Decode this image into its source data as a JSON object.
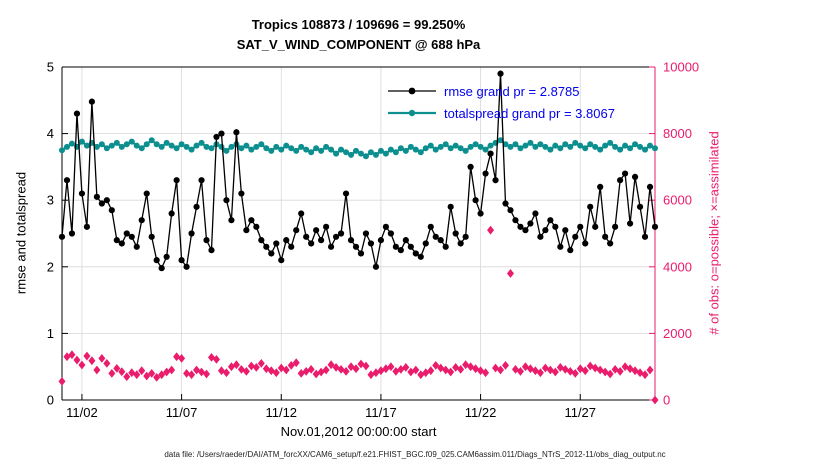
{
  "figure": {
    "title_line1": "Tropics 108873 / 109696 = 99.250%",
    "title_line2": "SAT_V_WIND_COMPONENT @ 688 hPa",
    "xlabel": "Nov.01,2012 00:00:00 start",
    "ylabel_left": "rmse and totalspread",
    "ylabel_right": "# of obs: o=possible; ×=assimilated",
    "caption": "data file: /Users/raeder/DAI/ATM_forcXX/CAM6_setup/f.e21.FHIST_BGC.f09_025.CAM6assim.011/Diags_NTrS_2012-11/obs_diag_output.nc",
    "colors": {
      "rmse": "#000000",
      "totalspread": "#0d8f8f",
      "obs": "#ea1c6c",
      "legend_text": "#0000ee",
      "grid": "#d8d8d8"
    }
  },
  "legend": {
    "items": [
      {
        "label": "rmse grand pr = 2.8785",
        "color": "#000000"
      },
      {
        "label": "totalspread grand pr = 3.8067",
        "color": "#0d8f8f"
      }
    ]
  },
  "chart_data": {
    "type": "line",
    "title": "Tropics 108873 / 109696 = 99.250% — SAT_V_WIND_COMPONENT @ 688 hPa",
    "xlabel": "Nov.01,2012 00:00:00 start",
    "ylabel_left": "rmse and totalspread",
    "ylabel_right": "# of obs: o=possible; ×=assimilated",
    "n_points": 120,
    "x_start": "2012-11-01 00:00",
    "x_step_hours": 6,
    "x_ticks": [
      {
        "index": 4,
        "label": "11/02"
      },
      {
        "index": 24,
        "label": "11/07"
      },
      {
        "index": 44,
        "label": "11/12"
      },
      {
        "index": 64,
        "label": "11/17"
      },
      {
        "index": 84,
        "label": "11/22"
      },
      {
        "index": 104,
        "label": "11/27"
      }
    ],
    "y_left": {
      "min": 0,
      "max": 5,
      "ticks": [
        0,
        1,
        2,
        3,
        4,
        5
      ]
    },
    "y_right": {
      "min": 0,
      "max": 10000,
      "ticks": [
        0,
        2000,
        4000,
        6000,
        8000,
        10000
      ]
    },
    "grid": true,
    "legend_position": "top-right-inside",
    "series": [
      {
        "name": "rmse",
        "axis": "left",
        "grand_mean": 2.8785,
        "marker": "circle",
        "values": [
          2.45,
          3.3,
          2.5,
          4.3,
          3.1,
          2.6,
          4.48,
          3.05,
          2.95,
          3.0,
          2.85,
          2.4,
          2.35,
          2.5,
          2.45,
          2.3,
          2.7,
          3.1,
          2.45,
          2.1,
          1.98,
          2.15,
          2.8,
          3.3,
          2.1,
          2.0,
          2.5,
          2.9,
          3.3,
          2.4,
          2.25,
          3.95,
          4.0,
          3.0,
          2.7,
          4.02,
          3.1,
          2.55,
          2.7,
          2.6,
          2.4,
          2.3,
          2.2,
          2.35,
          2.1,
          2.4,
          2.3,
          2.55,
          2.8,
          2.45,
          2.35,
          2.55,
          2.4,
          2.6,
          2.3,
          2.45,
          2.5,
          3.1,
          2.4,
          2.3,
          2.2,
          2.5,
          2.35,
          2.0,
          2.4,
          2.6,
          2.5,
          2.3,
          2.25,
          2.4,
          2.3,
          2.2,
          2.15,
          2.35,
          2.6,
          2.45,
          2.4,
          2.3,
          2.9,
          2.5,
          2.35,
          2.45,
          3.5,
          3.0,
          2.8,
          3.4,
          3.7,
          3.3,
          4.9,
          2.95,
          2.85,
          2.7,
          2.6,
          2.55,
          2.65,
          2.8,
          2.45,
          2.55,
          2.7,
          2.6,
          2.3,
          2.55,
          2.25,
          2.45,
          2.6,
          2.35,
          2.9,
          2.6,
          3.2,
          2.45,
          2.35,
          2.6,
          3.3,
          3.4,
          2.65,
          3.35,
          2.9,
          2.45,
          3.2,
          2.6
        ]
      },
      {
        "name": "totalspread",
        "axis": "left",
        "grand_mean": 3.8067,
        "marker": "circle",
        "values": [
          3.75,
          3.8,
          3.85,
          3.8,
          3.88,
          3.82,
          3.86,
          3.8,
          3.84,
          3.78,
          3.82,
          3.86,
          3.8,
          3.84,
          3.88,
          3.82,
          3.78,
          3.84,
          3.9,
          3.84,
          3.8,
          3.86,
          3.82,
          3.78,
          3.84,
          3.8,
          3.76,
          3.82,
          3.86,
          3.8,
          3.78,
          3.84,
          3.8,
          3.74,
          3.8,
          3.84,
          3.78,
          3.82,
          3.76,
          3.8,
          3.84,
          3.78,
          3.74,
          3.8,
          3.76,
          3.82,
          3.78,
          3.74,
          3.8,
          3.76,
          3.72,
          3.78,
          3.74,
          3.8,
          3.76,
          3.7,
          3.76,
          3.72,
          3.68,
          3.74,
          3.7,
          3.66,
          3.72,
          3.68,
          3.74,
          3.7,
          3.76,
          3.72,
          3.78,
          3.74,
          3.8,
          3.76,
          3.72,
          3.78,
          3.82,
          3.76,
          3.8,
          3.84,
          3.78,
          3.82,
          3.78,
          3.74,
          3.8,
          3.84,
          3.8,
          3.76,
          3.82,
          3.86,
          3.9,
          3.84,
          3.8,
          3.84,
          3.78,
          3.82,
          3.86,
          3.8,
          3.84,
          3.8,
          3.76,
          3.82,
          3.78,
          3.84,
          3.8,
          3.86,
          3.82,
          3.78,
          3.84,
          3.8,
          3.76,
          3.82,
          3.86,
          3.8,
          3.76,
          3.82,
          3.78,
          3.84,
          3.8,
          3.76,
          3.82,
          3.78
        ]
      },
      {
        "name": "num_obs",
        "axis": "right",
        "marker": "diamond",
        "values": [
          560,
          1300,
          1360,
          1200,
          1050,
          1320,
          1180,
          900,
          1250,
          1100,
          800,
          950,
          850,
          700,
          820,
          760,
          880,
          720,
          800,
          680,
          760,
          840,
          900,
          1300,
          1250,
          800,
          760,
          900,
          840,
          780,
          1280,
          1220,
          880,
          820,
          1000,
          1060,
          920,
          860,
          1020,
          980,
          1100,
          940,
          880,
          820,
          960,
          900,
          1040,
          1120,
          800,
          860,
          920,
          780,
          840,
          900,
          1060,
          980,
          920,
          860,
          1000,
          940,
          1080,
          1020,
          760,
          820,
          880,
          940,
          1000,
          860,
          920,
          980,
          840,
          900,
          760,
          820,
          880,
          1040,
          960,
          900,
          840,
          980,
          920,
          1060,
          1000,
          940,
          880,
          820,
          5100,
          960,
          900,
          1040,
          3800,
          920,
          860,
          1000,
          940,
          880,
          820,
          960,
          900,
          840,
          980,
          920,
          860,
          800,
          940,
          880,
          1020,
          960,
          900,
          840,
          780,
          920,
          860,
          1000,
          940,
          880,
          820,
          760,
          900,
          0
        ]
      }
    ]
  }
}
